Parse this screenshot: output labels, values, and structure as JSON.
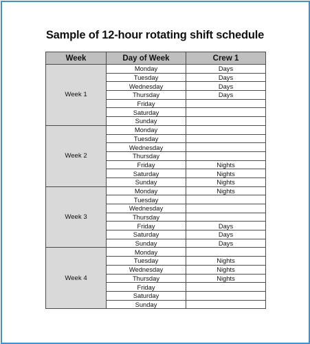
{
  "title": "Sample of 12-hour rotating shift schedule",
  "table": {
    "headers": {
      "week": "Week",
      "day": "Day of Week",
      "crew": "Crew 1"
    },
    "weeks": [
      {
        "label": "Week 1",
        "rows": [
          {
            "day": "Monday",
            "crew": "Days"
          },
          {
            "day": "Tuesday",
            "crew": "Days"
          },
          {
            "day": "Wednesday",
            "crew": "Days"
          },
          {
            "day": "Thursday",
            "crew": "Days"
          },
          {
            "day": "Friday",
            "crew": ""
          },
          {
            "day": "Saturday",
            "crew": ""
          },
          {
            "day": "Sunday",
            "crew": ""
          }
        ]
      },
      {
        "label": "Week 2",
        "rows": [
          {
            "day": "Monday",
            "crew": ""
          },
          {
            "day": "Tuesday",
            "crew": ""
          },
          {
            "day": "Wednesday",
            "crew": ""
          },
          {
            "day": "Thursday",
            "crew": ""
          },
          {
            "day": "Friday",
            "crew": "Nights"
          },
          {
            "day": "Saturday",
            "crew": "Nights"
          },
          {
            "day": "Sunday",
            "crew": "Nights"
          }
        ]
      },
      {
        "label": "Week 3",
        "rows": [
          {
            "day": "Monday",
            "crew": "Nights"
          },
          {
            "day": "Tuesday",
            "crew": ""
          },
          {
            "day": "Wednesday",
            "crew": ""
          },
          {
            "day": "Thursday",
            "crew": ""
          },
          {
            "day": "Friday",
            "crew": "Days"
          },
          {
            "day": "Saturday",
            "crew": "Days"
          },
          {
            "day": "Sunday",
            "crew": "Days"
          }
        ]
      },
      {
        "label": "Week 4",
        "rows": [
          {
            "day": "Monday",
            "crew": ""
          },
          {
            "day": "Tuesday",
            "crew": "Nights"
          },
          {
            "day": "Wednesday",
            "crew": "Nights"
          },
          {
            "day": "Thursday",
            "crew": "Nights"
          },
          {
            "day": "Friday",
            "crew": ""
          },
          {
            "day": "Saturday",
            "crew": ""
          },
          {
            "day": "Sunday",
            "crew": ""
          }
        ]
      }
    ]
  },
  "colors": {
    "frame_border": "#3f8fd6",
    "header_fill": "#bfbfbf",
    "week_fill": "#d9d9d9"
  }
}
